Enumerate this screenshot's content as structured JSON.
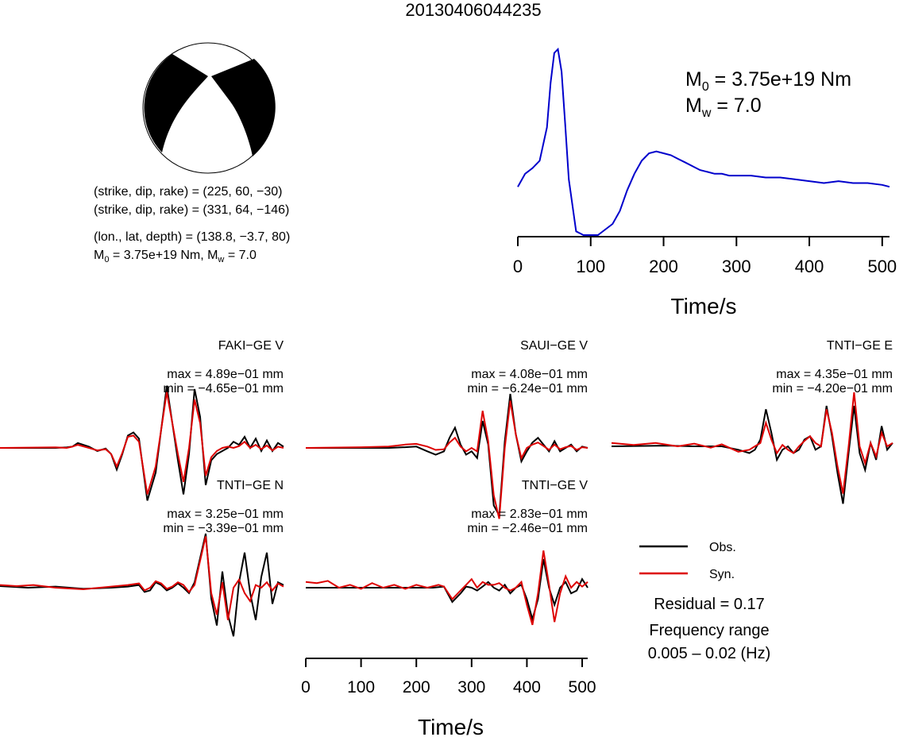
{
  "title": "20130406044235",
  "focal_mechanism": {
    "line1": "(strike, dip, rake) = (225, 60, −30)",
    "line2": "(strike, dip, rake) = (331, 64, −146)",
    "line3": "(lon., lat, depth) = (138.8, −3.7, 80)",
    "m0_prefix": "M",
    "m0_sub": "0",
    "m0_value": " = 3.75e+19 Nm, M",
    "mw_sub": "w",
    "mw_value": " = 7.0"
  },
  "stf_annotation": {
    "m0_label": "M",
    "m0_sub": "0",
    "m0_value": " = 3.75e+19 Nm",
    "mw_label": "M",
    "mw_sub": "w",
    "mw_value": " = 7.0"
  },
  "legend": {
    "obs": "Obs.",
    "syn": "Syn.",
    "residual": "Residual = 0.17",
    "freq_title": "Frequency range",
    "freq_value": "0.005 – 0.02 (Hz)"
  },
  "colors": {
    "observed": "#000000",
    "synthetic": "#dd0000",
    "stf": "#0000cc",
    "beachball_fill": "#000000"
  },
  "chart_data": [
    {
      "type": "line",
      "name": "source-time-function",
      "xlabel": "Time/s",
      "xlim": [
        0,
        510
      ],
      "xticks": [
        0,
        100,
        200,
        300,
        400,
        500
      ],
      "series": [
        {
          "x": [
            0,
            10,
            20,
            30,
            40,
            45,
            50,
            55,
            60,
            65,
            70,
            80,
            90,
            100,
            110,
            120,
            130,
            140,
            150,
            160,
            170,
            180,
            190,
            200,
            210,
            220,
            230,
            240,
            250,
            260,
            270,
            280,
            290,
            300,
            320,
            340,
            360,
            380,
            400,
            420,
            440,
            460,
            480,
            500,
            510
          ],
          "y": [
            0.26,
            0.33,
            0.36,
            0.4,
            0.58,
            0.82,
            0.98,
            1.0,
            0.88,
            0.6,
            0.3,
            0.02,
            0.0,
            0.0,
            0.0,
            0.03,
            0.06,
            0.13,
            0.24,
            0.33,
            0.4,
            0.44,
            0.45,
            0.44,
            0.43,
            0.41,
            0.39,
            0.37,
            0.35,
            0.34,
            0.33,
            0.33,
            0.32,
            0.32,
            0.32,
            0.31,
            0.31,
            0.3,
            0.29,
            0.28,
            0.29,
            0.28,
            0.28,
            0.27,
            0.26
          ]
        }
      ]
    },
    {
      "type": "line",
      "name": "waveforms",
      "xlabel": "Time/s",
      "xlim": [
        0,
        510
      ],
      "xticks": [
        0,
        100,
        200,
        300,
        400,
        500
      ],
      "stations": [
        {
          "name": "FAKI−GE V",
          "max": "max = 4.89e−01 mm",
          "min": "min = −4.65e−01 mm",
          "obs": {
            "x": [
              0,
              100,
              120,
              130,
              140,
              160,
              175,
              190,
              200,
              210,
              220,
              230,
              240,
              250,
              265,
              280,
              300,
              320,
              330,
              340,
              350,
              360,
              370,
              380,
              390,
              400,
              410,
              420,
              430,
              440,
              450,
              460,
              470,
              480,
              490,
              500,
              510
            ],
            "y": [
              0,
              0,
              0.01,
              0.02,
              0.08,
              0.02,
              -0.05,
              -0.01,
              -0.1,
              -0.35,
              -0.1,
              0.2,
              0.25,
              0.15,
              -0.85,
              -0.4,
              1.0,
              -0.2,
              -0.75,
              -0.1,
              0.95,
              0.5,
              -0.6,
              -0.2,
              -0.1,
              -0.05,
              0.0,
              0.1,
              0.05,
              0.18,
              0.0,
              0.15,
              -0.05,
              0.12,
              -0.05,
              0.08,
              0.02
            ]
          },
          "syn": {
            "x": [
              0,
              100,
              120,
              130,
              140,
              160,
              175,
              190,
              200,
              210,
              220,
              230,
              240,
              250,
              265,
              280,
              300,
              320,
              330,
              340,
              350,
              360,
              370,
              380,
              390,
              400,
              410,
              420,
              430,
              440,
              450,
              460,
              470,
              480,
              490,
              500,
              510
            ],
            "y": [
              0,
              0.01,
              0.0,
              0.02,
              0.05,
              0.0,
              -0.04,
              -0.02,
              -0.1,
              -0.3,
              -0.08,
              0.18,
              0.2,
              0.1,
              -0.75,
              -0.3,
              0.9,
              -0.1,
              -0.55,
              0.0,
              0.78,
              0.4,
              -0.45,
              -0.15,
              -0.05,
              0.0,
              0.02,
              0.0,
              0.03,
              0.1,
              0.0,
              0.05,
              -0.02,
              0.04,
              -0.04,
              0.02,
              0.0
            ]
          }
        },
        {
          "name": "SAUI−GE V",
          "max": "max = 4.08e−01 mm",
          "min": "min = −6.24e−01 mm",
          "obs": {
            "x": [
              0,
              100,
              150,
              180,
              200,
              220,
              235,
              250,
              260,
              270,
              280,
              290,
              300,
              310,
              320,
              330,
              340,
              350,
              360,
              370,
              380,
              390,
              400,
              410,
              420,
              430,
              440,
              450,
              460,
              470,
              480,
              490,
              500,
              510
            ],
            "y": [
              0,
              0,
              0,
              0.01,
              0.02,
              -0.05,
              -0.1,
              -0.05,
              0.15,
              0.3,
              0.05,
              -0.1,
              -0.05,
              -0.15,
              0.4,
              0.05,
              -0.85,
              -1.0,
              0.1,
              0.8,
              0.2,
              -0.2,
              -0.05,
              0.08,
              0.15,
              0.05,
              -0.05,
              0.1,
              -0.05,
              0.0,
              0.05,
              -0.05,
              0.02,
              0.0
            ]
          },
          "syn": {
            "x": [
              0,
              100,
              150,
              180,
              200,
              220,
              235,
              250,
              260,
              270,
              280,
              290,
              300,
              310,
              320,
              330,
              340,
              350,
              360,
              370,
              380,
              390,
              400,
              410,
              420,
              430,
              440,
              450,
              460,
              470,
              480,
              490,
              500,
              510
            ],
            "y": [
              0,
              0.01,
              0.02,
              0.05,
              0.06,
              0.02,
              -0.03,
              -0.02,
              0.08,
              0.15,
              0.02,
              -0.05,
              0.0,
              -0.05,
              0.55,
              0.1,
              -0.7,
              -1.05,
              0.0,
              0.7,
              0.2,
              -0.15,
              0.0,
              0.05,
              0.08,
              0.03,
              -0.03,
              0.05,
              -0.02,
              0.01,
              0.03,
              -0.03,
              0.01,
              0.0
            ]
          }
        },
        {
          "name": "TNTI−GE E",
          "max": "max = 4.35e−01 mm",
          "min": "min = −4.20e−01 mm",
          "obs": {
            "x": [
              0,
              100,
              150,
              200,
              230,
              250,
              260,
              270,
              280,
              290,
              300,
              310,
              320,
              330,
              340,
              350,
              360,
              370,
              380,
              390,
              400,
              410,
              420,
              430,
              440,
              450,
              460,
              470,
              480,
              490,
              500,
              510
            ],
            "y": [
              0,
              0.01,
              0.0,
              0.0,
              -0.05,
              -0.1,
              -0.05,
              0.1,
              0.55,
              0.2,
              -0.2,
              -0.05,
              0.0,
              -0.1,
              -0.05,
              0.1,
              0.15,
              -0.05,
              0.0,
              0.6,
              0.15,
              -0.4,
              -0.85,
              -0.1,
              0.6,
              -0.1,
              -0.35,
              0.05,
              -0.2,
              0.3,
              -0.05,
              0.05
            ]
          },
          "syn": {
            "x": [
              0,
              40,
              80,
              120,
              150,
              180,
              200,
              230,
              250,
              260,
              270,
              280,
              290,
              300,
              310,
              320,
              330,
              340,
              350,
              360,
              370,
              380,
              390,
              400,
              410,
              420,
              430,
              440,
              450,
              460,
              470,
              480,
              490,
              500,
              510
            ],
            "y": [
              0.05,
              0.02,
              0.05,
              0.0,
              0.04,
              -0.02,
              0.03,
              -0.08,
              -0.05,
              0.0,
              0.05,
              0.35,
              0.1,
              -0.1,
              0.02,
              -0.05,
              -0.1,
              0.0,
              0.08,
              0.15,
              0.05,
              0.0,
              0.55,
              0.2,
              -0.3,
              -0.7,
              0.0,
              0.8,
              0.0,
              -0.25,
              0.05,
              -0.15,
              0.2,
              0.0,
              0.05
            ]
          }
        },
        {
          "name": "TNTI−GE N",
          "max": "max = 3.25e−01 mm",
          "min": "min = −3.39e−01 mm",
          "obs": {
            "x": [
              0,
              50,
              100,
              150,
              200,
              230,
              250,
              260,
              270,
              280,
              290,
              300,
              310,
              320,
              330,
              340,
              350,
              360,
              370,
              380,
              390,
              400,
              410,
              420,
              430,
              440,
              450,
              460,
              470,
              480,
              490,
              500,
              510
            ],
            "y": [
              0.03,
              0.0,
              0.02,
              -0.02,
              0.0,
              0.02,
              0.05,
              -0.08,
              -0.05,
              0.1,
              0.05,
              -0.05,
              0.0,
              0.08,
              0.0,
              -0.1,
              0.1,
              0.55,
              1.0,
              -0.2,
              -0.7,
              0.3,
              -0.5,
              -0.9,
              0.1,
              0.65,
              -0.1,
              -0.6,
              0.2,
              0.65,
              -0.3,
              0.1,
              0.05
            ]
          },
          "syn": {
            "x": [
              0,
              30,
              60,
              100,
              150,
              200,
              230,
              250,
              260,
              270,
              280,
              290,
              300,
              310,
              320,
              330,
              340,
              350,
              360,
              370,
              380,
              390,
              400,
              410,
              420,
              430,
              440,
              450,
              460,
              470,
              480,
              490,
              500,
              510
            ],
            "y": [
              0.05,
              0.03,
              0.05,
              0.0,
              -0.03,
              0.02,
              0.05,
              0.08,
              -0.05,
              0.0,
              0.12,
              0.08,
              -0.02,
              0.02,
              0.1,
              0.05,
              -0.08,
              0.05,
              0.5,
              0.95,
              -0.1,
              -0.5,
              0.1,
              -0.6,
              0.0,
              0.15,
              -0.1,
              -0.25,
              0.05,
              0.0,
              0.1,
              -0.05,
              0.08,
              0.02
            ]
          }
        },
        {
          "name": "TNTI−GE V",
          "max": "max = 2.83e−01 mm",
          "min": "min = −2.46e−01 mm",
          "obs": {
            "x": [
              0,
              50,
              100,
              150,
              200,
              230,
              250,
              265,
              280,
              290,
              300,
              310,
              320,
              330,
              340,
              350,
              360,
              370,
              380,
              390,
              400,
              410,
              420,
              430,
              440,
              450,
              460,
              470,
              480,
              490,
              500,
              510
            ],
            "y": [
              0.0,
              0.0,
              0.0,
              0.0,
              0.0,
              0.0,
              0.02,
              -0.25,
              -0.1,
              0.02,
              0.0,
              -0.05,
              0.02,
              0.1,
              0.0,
              -0.05,
              0.05,
              -0.1,
              0.0,
              0.05,
              -0.2,
              -0.55,
              -0.2,
              0.5,
              0.0,
              -0.3,
              0.0,
              0.1,
              -0.1,
              -0.05,
              0.15,
              0.0
            ]
          },
          "syn": {
            "x": [
              0,
              20,
              40,
              60,
              80,
              100,
              120,
              140,
              160,
              180,
              200,
              220,
              240,
              250,
              265,
              280,
              290,
              300,
              310,
              320,
              330,
              340,
              350,
              360,
              370,
              380,
              390,
              400,
              410,
              420,
              430,
              440,
              450,
              460,
              470,
              480,
              490,
              500,
              510
            ],
            "y": [
              0.1,
              0.08,
              0.12,
              0.0,
              0.05,
              -0.02,
              0.08,
              0.0,
              0.05,
              -0.02,
              0.05,
              0.0,
              0.05,
              0.02,
              -0.2,
              -0.05,
              0.05,
              0.15,
              0.0,
              0.1,
              0.05,
              0.05,
              0.08,
              0.0,
              -0.05,
              0.0,
              0.1,
              -0.3,
              -0.65,
              -0.1,
              0.65,
              0.05,
              -0.6,
              -0.1,
              0.2,
              0.0,
              0.1,
              0.02,
              0.1
            ]
          }
        }
      ]
    }
  ]
}
